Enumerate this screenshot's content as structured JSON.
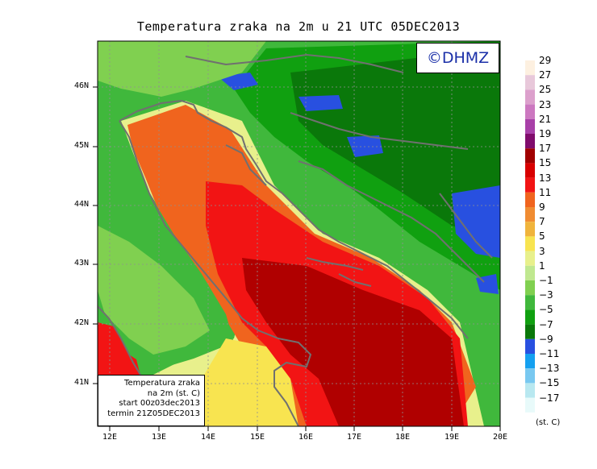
{
  "title": "Temperatura zraka na 2m u 21 UTC 05DEC2013",
  "logo": "©DHMZ",
  "info_box": {
    "line1": "Temperatura zraka",
    "line2": "na 2m (st. C)",
    "line3": "start 00z03dec2013",
    "line4": "termin 21Z05DEC2013"
  },
  "lat_labels": [
    "46N",
    "45N",
    "44N",
    "43N",
    "42N",
    "41N"
  ],
  "lon_labels": [
    "12E",
    "13E",
    "14E",
    "15E",
    "16E",
    "17E",
    "18E",
    "19E",
    "20E"
  ],
  "colorbar": {
    "units": "(st. C)",
    "labels": [
      "29",
      "27",
      "25",
      "23",
      "21",
      "19",
      "17",
      "15",
      "13",
      "11",
      "9",
      "7",
      "5",
      "3",
      "1",
      "−1",
      "−3",
      "−5",
      "−7",
      "−9",
      "−11",
      "−13",
      "−15",
      "−17"
    ],
    "colors": [
      "#fdf0e0",
      "#e8c8da",
      "#dca0cc",
      "#cc78c0",
      "#a840a8",
      "#800c6c",
      "#a00000",
      "#d80000",
      "#f21414",
      "#f0641e",
      "#f08c32",
      "#f0b43c",
      "#f8e450",
      "#e8f08c",
      "#c0e890",
      "#80d050",
      "#40b83c",
      "#10a010",
      "#0a780a",
      "#2850e0",
      "#14a0f0",
      "#78c8f0",
      "#b8e8f0",
      "#e8fafa"
    ]
  },
  "colors": {
    "sea_warm": "#d80000",
    "sea_hot": "#b00000",
    "coast_orange": "#f0641e",
    "land_green": "#40b83c",
    "mountain_dark": "#0a780a",
    "cold_blue": "#2850e0",
    "borders": "#707070"
  }
}
